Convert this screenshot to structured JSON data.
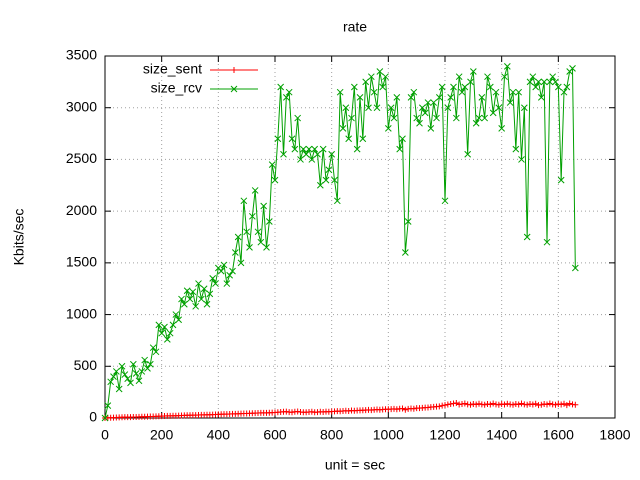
{
  "chart_data": {
    "type": "line",
    "title": "rate",
    "x_label": "unit = sec",
    "y_label": "Kbits/sec",
    "x": [
      0,
      10,
      20,
      30,
      40,
      50,
      60,
      70,
      80,
      90,
      100,
      110,
      120,
      130,
      140,
      150,
      160,
      170,
      180,
      190,
      200,
      210,
      220,
      230,
      240,
      250,
      260,
      270,
      280,
      290,
      300,
      310,
      320,
      330,
      340,
      350,
      360,
      370,
      380,
      390,
      400,
      410,
      420,
      430,
      440,
      450,
      460,
      470,
      480,
      490,
      500,
      510,
      520,
      530,
      540,
      550,
      560,
      570,
      580,
      590,
      600,
      610,
      620,
      630,
      640,
      650,
      660,
      670,
      680,
      690,
      700,
      710,
      720,
      730,
      740,
      750,
      760,
      770,
      780,
      790,
      800,
      810,
      820,
      830,
      840,
      850,
      860,
      870,
      880,
      890,
      900,
      910,
      920,
      930,
      940,
      950,
      960,
      970,
      980,
      990,
      1000,
      1010,
      1020,
      1030,
      1040,
      1050,
      1060,
      1070,
      1080,
      1090,
      1100,
      1110,
      1120,
      1130,
      1140,
      1150,
      1160,
      1170,
      1180,
      1190,
      1200,
      1210,
      1220,
      1230,
      1240,
      1250,
      1260,
      1270,
      1280,
      1290,
      1300,
      1310,
      1320,
      1330,
      1340,
      1350,
      1360,
      1370,
      1380,
      1390,
      1400,
      1410,
      1420,
      1430,
      1440,
      1450,
      1460,
      1470,
      1480,
      1490,
      1500,
      1510,
      1520,
      1530,
      1540,
      1550,
      1560,
      1570,
      1580,
      1590,
      1600,
      1610,
      1620,
      1630,
      1640,
      1650,
      1660
    ],
    "series": [
      {
        "name": "size_sent",
        "color": "#ff0000",
        "marker": "plus",
        "values": [
          0,
          2,
          3,
          4,
          5,
          6,
          7,
          8,
          8,
          9,
          10,
          10,
          11,
          12,
          12,
          13,
          14,
          15,
          16,
          17,
          18,
          19,
          20,
          21,
          22,
          22,
          23,
          24,
          25,
          26,
          27,
          28,
          28,
          29,
          30,
          30,
          31,
          32,
          33,
          34,
          35,
          36,
          37,
          38,
          39,
          40,
          40,
          41,
          42,
          43,
          44,
          45,
          46,
          47,
          48,
          49,
          50,
          50,
          51,
          52,
          53,
          55,
          58,
          60,
          62,
          57,
          55,
          60,
          63,
          58,
          55,
          56,
          58,
          60,
          55,
          57,
          60,
          58,
          62,
          60,
          63,
          64,
          66,
          65,
          68,
          70,
          68,
          72,
          70,
          72,
          74,
          75,
          76,
          78,
          76,
          80,
          82,
          80,
          82,
          84,
          85,
          86,
          88,
          85,
          90,
          92,
          80,
          88,
          92,
          90,
          95,
          96,
          98,
          100,
          102,
          105,
          108,
          110,
          112,
          120,
          125,
          130,
          135,
          140,
          145,
          130,
          135,
          140,
          132,
          128,
          135,
          130,
          138,
          132,
          128,
          135,
          130,
          140,
          132,
          128,
          135,
          130,
          138,
          132,
          128,
          135,
          130,
          140,
          132,
          128,
          135,
          130,
          138,
          125,
          128,
          135,
          130,
          140,
          132,
          128,
          135,
          130,
          138,
          125,
          140,
          132,
          128
        ]
      },
      {
        "name": "size_rcv",
        "color": "#00a000",
        "marker": "cross",
        "values": [
          0,
          120,
          350,
          400,
          450,
          280,
          500,
          420,
          380,
          340,
          520,
          430,
          360,
          450,
          560,
          480,
          520,
          680,
          640,
          900,
          820,
          880,
          760,
          820,
          900,
          1000,
          950,
          1150,
          1100,
          1230,
          1150,
          1220,
          1080,
          1300,
          1150,
          1250,
          1100,
          1200,
          1350,
          1300,
          1450,
          1420,
          1480,
          1300,
          1380,
          1420,
          1600,
          1750,
          1500,
          2100,
          1800,
          1650,
          1950,
          2200,
          1800,
          1700,
          2050,
          1650,
          1900,
          2450,
          2300,
          2700,
          3200,
          2550,
          3100,
          3150,
          2700,
          2600,
          2900,
          2500,
          2600,
          2550,
          2600,
          2500,
          2600,
          2550,
          2250,
          2600,
          2300,
          2400,
          2550,
          2300,
          2100,
          3150,
          2800,
          3000,
          2700,
          2900,
          3200,
          2600,
          3100,
          2700,
          3250,
          3000,
          3300,
          3150,
          3000,
          3350,
          3200,
          3300,
          2800,
          3000,
          2900,
          3100,
          2600,
          2700,
          1600,
          1900,
          3100,
          3150,
          2900,
          2850,
          3000,
          2950,
          3050,
          2800,
          3050,
          2900,
          3100,
          3200,
          2100,
          3000,
          3100,
          3200,
          2900,
          3300,
          3150,
          3200,
          2550,
          3250,
          3350,
          2850,
          2900,
          3100,
          2900,
          3300,
          3200,
          2950,
          3150,
          3000,
          2800,
          3300,
          3400,
          3050,
          3150,
          2600,
          3150,
          2500,
          3000,
          1750,
          3250,
          3300,
          3200,
          3250,
          3100,
          3250,
          1700,
          3250,
          3300,
          3250,
          3200,
          2300,
          3150,
          3200,
          3350,
          3380,
          1450
        ]
      }
    ],
    "xlim": [
      0,
      1800
    ],
    "xticks": [
      0,
      200,
      400,
      600,
      800,
      1000,
      1200,
      1400,
      1600,
      1800
    ],
    "ylim": [
      0,
      3500
    ],
    "yticks": [
      0,
      500,
      1000,
      1500,
      2000,
      2500,
      3000,
      3500
    ],
    "grid": true,
    "legend": "top-left"
  }
}
